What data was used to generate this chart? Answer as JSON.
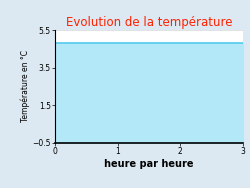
{
  "title": "Evolution de la température",
  "title_color": "#ff2200",
  "xlabel": "heure par heure",
  "ylabel": "Température en °C",
  "xlim": [
    0,
    3
  ],
  "ylim": [
    -0.5,
    5.5
  ],
  "xticks": [
    0,
    1,
    2,
    3
  ],
  "yticks": [
    -0.5,
    1.5,
    3.5,
    5.5
  ],
  "x_data": [
    0,
    3
  ],
  "y_data": [
    4.8,
    4.8
  ],
  "fill_color": "#b3e8f8",
  "line_color": "#55ccee",
  "line_width": 1.2,
  "background_color": "#dce9f2",
  "plot_bg_color": "#ffffff",
  "fill_alpha": 1.0,
  "title_fontsize": 8.5,
  "xlabel_fontsize": 7,
  "ylabel_fontsize": 5.5,
  "tick_fontsize": 5.5
}
